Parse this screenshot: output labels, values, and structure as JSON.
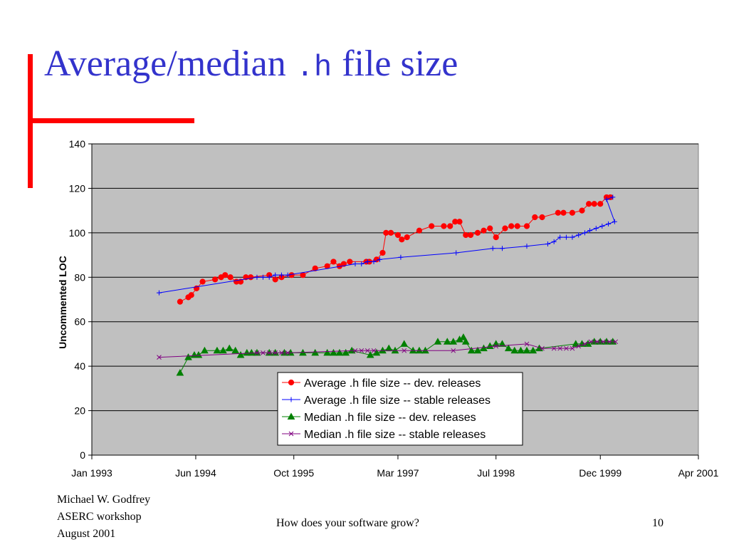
{
  "slide": {
    "title_pre": "Average/median",
    "title_mono": ".h",
    "title_post": "file size",
    "accent_color": "#ff0000",
    "title_color": "#3333cc"
  },
  "footer": {
    "author": "Michael W. Godfrey",
    "event": "ASERC workshop",
    "date": "August 2001",
    "subtitle": "How does your software grow?",
    "page_number": "10"
  },
  "chart_data": {
    "type": "line",
    "title": "",
    "xlabel": "",
    "ylabel": "Uncommented LOC",
    "xlim": [
      "1993-01-01",
      "2001-04-01"
    ],
    "ylim": [
      0,
      140
    ],
    "yticks": [
      0,
      20,
      40,
      60,
      80,
      100,
      120,
      140
    ],
    "x_ticks": [
      {
        "value": "1993-01-01",
        "label": "Jan 1993"
      },
      {
        "value": "1994-06-01",
        "label": "Jun 1994"
      },
      {
        "value": "1995-10-01",
        "label": "Oct 1995"
      },
      {
        "value": "1997-03-01",
        "label": "Mar 1997"
      },
      {
        "value": "1998-07-01",
        "label": "Jul 1998"
      },
      {
        "value": "1999-12-01",
        "label": "Dec 1999"
      },
      {
        "value": "2001-04-01",
        "label": "Apr 2001"
      }
    ],
    "grid": "horizontal",
    "plot_background": "#c0c0c0",
    "legend_position": "bottom-center",
    "series": [
      {
        "name": "Average .h file size -- dev. releases",
        "color": "#ff0000",
        "marker": "circle",
        "points": [
          [
            "1994-03-15",
            69
          ],
          [
            "1994-04-25",
            71
          ],
          [
            "1994-05-10",
            72
          ],
          [
            "1994-06-05",
            75
          ],
          [
            "1994-07-05",
            78
          ],
          [
            "1994-09-05",
            79
          ],
          [
            "1994-10-05",
            80
          ],
          [
            "1994-10-25",
            81
          ],
          [
            "1994-11-20",
            80
          ],
          [
            "1994-12-20",
            78
          ],
          [
            "1995-01-10",
            78
          ],
          [
            "1995-02-05",
            80
          ],
          [
            "1995-03-01",
            80
          ],
          [
            "1995-06-01",
            81
          ],
          [
            "1995-07-01",
            79
          ],
          [
            "1995-08-01",
            80
          ],
          [
            "1995-09-20",
            81
          ],
          [
            "1995-11-15",
            81
          ],
          [
            "1996-01-15",
            84
          ],
          [
            "1996-03-15",
            85
          ],
          [
            "1996-04-15",
            87
          ],
          [
            "1996-05-15",
            85
          ],
          [
            "1996-06-05",
            86
          ],
          [
            "1996-07-05",
            87
          ],
          [
            "1996-09-25",
            87
          ],
          [
            "1996-10-10",
            87
          ],
          [
            "1996-11-15",
            88
          ],
          [
            "1996-12-15",
            91
          ],
          [
            "1997-01-01",
            100
          ],
          [
            "1997-01-25",
            100
          ],
          [
            "1997-03-01",
            99
          ],
          [
            "1997-03-20",
            97
          ],
          [
            "1997-04-15",
            98
          ],
          [
            "1997-06-15",
            101
          ],
          [
            "1997-08-15",
            103
          ],
          [
            "1997-10-15",
            103
          ],
          [
            "1997-11-15",
            103
          ],
          [
            "1997-12-10",
            105
          ],
          [
            "1998-01-01",
            105
          ],
          [
            "1998-02-01",
            99
          ],
          [
            "1998-02-25",
            99
          ],
          [
            "1998-04-01",
            100
          ],
          [
            "1998-05-01",
            101
          ],
          [
            "1998-06-01",
            102
          ],
          [
            "1998-07-01",
            98
          ],
          [
            "1998-08-15",
            102
          ],
          [
            "1998-09-15",
            103
          ],
          [
            "1998-10-15",
            103
          ],
          [
            "1998-12-01",
            103
          ],
          [
            "1999-01-10",
            107
          ],
          [
            "1999-02-15",
            107
          ],
          [
            "1999-05-05",
            109
          ],
          [
            "1999-06-01",
            109
          ],
          [
            "1999-07-15",
            109
          ],
          [
            "1999-09-01",
            110
          ],
          [
            "1999-10-05",
            113
          ],
          [
            "1999-11-01",
            113
          ],
          [
            "1999-12-01",
            113
          ],
          [
            "2000-01-01",
            116
          ],
          [
            "2000-01-20",
            116
          ]
        ]
      },
      {
        "name": "Average .h file size -- stable releases",
        "color": "#0000ff",
        "marker": "plus",
        "points": [
          [
            "1993-12-01",
            73
          ],
          [
            "1995-04-01",
            80
          ],
          [
            "1995-05-01",
            80
          ],
          [
            "1995-06-01",
            80
          ],
          [
            "1995-07-01",
            81
          ],
          [
            "1995-08-01",
            81
          ],
          [
            "1995-09-01",
            81
          ],
          [
            "1996-08-01",
            86
          ],
          [
            "1996-09-01",
            86
          ],
          [
            "1996-10-01",
            87
          ],
          [
            "1996-11-01",
            87
          ],
          [
            "1996-12-01",
            88
          ],
          [
            "1997-03-15",
            89
          ],
          [
            "1997-12-15",
            91
          ],
          [
            "1998-06-15",
            93
          ],
          [
            "1998-08-01",
            93
          ],
          [
            "1998-12-01",
            94
          ],
          [
            "1999-03-15",
            95
          ],
          [
            "1999-04-15",
            96
          ],
          [
            "1999-05-15",
            98
          ],
          [
            "1999-06-15",
            98
          ],
          [
            "1999-07-15",
            98
          ],
          [
            "1999-08-15",
            99
          ],
          [
            "1999-09-15",
            100
          ],
          [
            "1999-10-10",
            101
          ],
          [
            "1999-11-10",
            102
          ],
          [
            "1999-12-10",
            103
          ],
          [
            "2000-01-10",
            104
          ],
          [
            "2000-02-10",
            105
          ],
          [
            "2000-01-01",
            115
          ],
          [
            "2000-02-01",
            116
          ]
        ]
      },
      {
        "name": "Median .h file size -- dev. releases",
        "color": "#008000",
        "marker": "triangle",
        "points": [
          [
            "1994-03-15",
            37
          ],
          [
            "1994-04-25",
            44
          ],
          [
            "1994-05-25",
            45
          ],
          [
            "1994-06-15",
            45
          ],
          [
            "1994-07-15",
            47
          ],
          [
            "1994-09-15",
            47
          ],
          [
            "1994-10-15",
            47
          ],
          [
            "1994-11-15",
            48
          ],
          [
            "1994-12-15",
            47
          ],
          [
            "1995-01-10",
            45
          ],
          [
            "1995-02-10",
            46
          ],
          [
            "1995-03-05",
            46
          ],
          [
            "1995-04-01",
            46
          ],
          [
            "1995-06-01",
            46
          ],
          [
            "1995-07-01",
            46
          ],
          [
            "1995-08-15",
            46
          ],
          [
            "1995-09-15",
            46
          ],
          [
            "1995-11-15",
            46
          ],
          [
            "1996-01-15",
            46
          ],
          [
            "1996-03-15",
            46
          ],
          [
            "1996-04-15",
            46
          ],
          [
            "1996-05-15",
            46
          ],
          [
            "1996-06-15",
            46
          ],
          [
            "1996-07-15",
            47
          ],
          [
            "1996-10-15",
            45
          ],
          [
            "1996-11-15",
            46
          ],
          [
            "1996-12-15",
            47
          ],
          [
            "1997-01-15",
            48
          ],
          [
            "1997-02-15",
            47
          ],
          [
            "1997-04-01",
            50
          ],
          [
            "1997-05-15",
            47
          ],
          [
            "1997-06-15",
            47
          ],
          [
            "1997-07-15",
            47
          ],
          [
            "1997-09-15",
            51
          ],
          [
            "1997-11-01",
            51
          ],
          [
            "1997-12-01",
            51
          ],
          [
            "1998-01-01",
            52
          ],
          [
            "1998-01-20",
            53
          ],
          [
            "1998-02-01",
            51
          ],
          [
            "1998-03-01",
            47
          ],
          [
            "1998-04-01",
            47
          ],
          [
            "1998-05-01",
            48
          ],
          [
            "1998-06-01",
            49
          ],
          [
            "1998-07-01",
            50
          ],
          [
            "1998-08-01",
            50
          ],
          [
            "1998-09-01",
            48
          ],
          [
            "1998-10-01",
            47
          ],
          [
            "1998-11-01",
            47
          ],
          [
            "1998-12-01",
            47
          ],
          [
            "1999-01-01",
            47
          ],
          [
            "1999-02-01",
            48
          ],
          [
            "1999-08-01",
            50
          ],
          [
            "1999-09-01",
            50
          ],
          [
            "1999-10-01",
            50
          ],
          [
            "1999-11-01",
            51
          ],
          [
            "1999-12-01",
            51
          ],
          [
            "2000-01-01",
            51
          ],
          [
            "2000-02-01",
            51
          ]
        ]
      },
      {
        "name": "Median .h file size -- stable releases",
        "color": "#800080",
        "marker": "x",
        "points": [
          [
            "1993-12-01",
            44
          ],
          [
            "1995-04-01",
            46
          ],
          [
            "1995-05-01",
            46
          ],
          [
            "1995-06-01",
            46
          ],
          [
            "1995-07-01",
            46
          ],
          [
            "1995-08-01",
            46
          ],
          [
            "1995-09-01",
            46
          ],
          [
            "1996-08-01",
            47
          ],
          [
            "1996-09-01",
            47
          ],
          [
            "1996-10-01",
            47
          ],
          [
            "1996-11-01",
            47
          ],
          [
            "1997-04-01",
            47
          ],
          [
            "1997-12-01",
            47
          ],
          [
            "1998-07-01",
            49
          ],
          [
            "1998-12-01",
            50
          ],
          [
            "1999-02-15",
            48
          ],
          [
            "1999-04-15",
            48
          ],
          [
            "1999-05-15",
            48
          ],
          [
            "1999-06-15",
            48
          ],
          [
            "1999-07-15",
            48
          ],
          [
            "1999-08-15",
            49
          ],
          [
            "1999-09-15",
            50
          ],
          [
            "1999-10-15",
            51
          ],
          [
            "1999-11-15",
            51
          ],
          [
            "1999-12-15",
            51
          ],
          [
            "2000-01-15",
            51
          ],
          [
            "2000-02-15",
            51
          ]
        ]
      }
    ]
  }
}
